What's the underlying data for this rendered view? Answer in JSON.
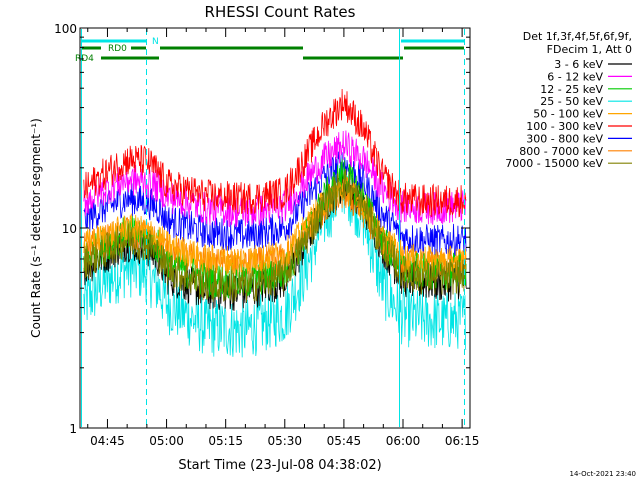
{
  "chart_data": {
    "type": "line",
    "title": "RHESSI Count Rates",
    "xlabel": "Start Time (23-Jul-08 04:38:02)",
    "ylabel": "Count Rate (s⁻¹ detector segment⁻¹)",
    "yscale": "log",
    "ylim": [
      1,
      100
    ],
    "xlim": [
      "04:38:02",
      "06:17:00"
    ],
    "x_ticks": [
      "04:45",
      "05:00",
      "05:15",
      "05:30",
      "05:45",
      "06:00",
      "06:15"
    ],
    "y_ticks": [
      "1",
      "10",
      "100"
    ],
    "grid": false,
    "legend_position": "right",
    "legend_header": [
      "Det 1f,3f,4f,5f,6f,9f,",
      "FDecim 1, Att 0"
    ],
    "x": [
      "04:39",
      "04:44",
      "04:50",
      "04:55",
      "04:58",
      "05:00",
      "05:10",
      "05:20",
      "05:30",
      "05:35",
      "05:40",
      "05:45",
      "05:50",
      "05:55",
      "05:59",
      "06:00",
      "06:05",
      "06:10",
      "06:15"
    ],
    "series": [
      {
        "name": "3 - 6 keV",
        "color": "#000000",
        "values": [
          6.3,
          7.3,
          8.5,
          8.0,
          7.0,
          5.8,
          4.8,
          4.8,
          5.5,
          8.2,
          13.0,
          17.0,
          13.0,
          8.0,
          6.0,
          5.6,
          5.4,
          5.3,
          5.5
        ]
      },
      {
        "name": "6 - 12 keV",
        "color": "#ff00ff",
        "values": [
          13.5,
          15.5,
          17.5,
          17.0,
          16.0,
          14.5,
          12.5,
          12.0,
          12.8,
          17.0,
          22.0,
          26.0,
          22.0,
          15.5,
          13.0,
          12.8,
          12.5,
          12.6,
          12.8
        ]
      },
      {
        "name": "12 - 25 keV",
        "color": "#00cc00",
        "values": [
          7.0,
          8.2,
          9.5,
          9.0,
          8.0,
          6.8,
          5.5,
          5.4,
          6.0,
          9.0,
          14.0,
          19.0,
          14.0,
          8.5,
          6.8,
          6.3,
          6.1,
          6.0,
          6.2
        ]
      },
      {
        "name": "25 - 50 keV",
        "color": "#00e5e5",
        "values": [
          4.2,
          5.3,
          6.4,
          6.0,
          5.0,
          4.2,
          3.2,
          3.1,
          3.7,
          6.0,
          11.0,
          16.5,
          11.0,
          5.0,
          3.9,
          3.6,
          3.5,
          3.4,
          3.5
        ]
      },
      {
        "name": "50 - 100 keV",
        "color": "#ffa500",
        "values": [
          8.2,
          9.0,
          10.0,
          9.6,
          9.0,
          8.2,
          7.0,
          6.9,
          7.4,
          9.8,
          13.5,
          16.0,
          13.0,
          8.8,
          7.6,
          7.1,
          6.9,
          6.8,
          6.9
        ]
      },
      {
        "name": "100 - 300 keV",
        "color": "#ff0000",
        "values": [
          15.5,
          18.5,
          22.0,
          21.5,
          19.0,
          16.5,
          14.5,
          14.0,
          15.0,
          22.0,
          33.0,
          43.0,
          31.0,
          18.0,
          14.5,
          14.0,
          13.7,
          13.6,
          13.8
        ]
      },
      {
        "name": "300 - 800 keV",
        "color": "#0000ff",
        "values": [
          11.0,
          12.5,
          14.0,
          13.5,
          12.5,
          11.0,
          9.5,
          9.2,
          10.0,
          13.5,
          18.0,
          21.0,
          17.0,
          11.5,
          9.5,
          9.0,
          8.7,
          8.6,
          8.7
        ]
      },
      {
        "name": "800 - 7000 keV",
        "color": "#ff8000",
        "values": [
          7.8,
          8.6,
          9.5,
          9.1,
          8.5,
          7.8,
          6.6,
          6.5,
          7.0,
          9.3,
          12.5,
          15.0,
          12.0,
          8.2,
          7.0,
          6.6,
          6.4,
          6.3,
          6.4
        ]
      },
      {
        "name": "7000 - 15000 keV",
        "color": "#808000",
        "values": [
          6.7,
          7.6,
          8.8,
          8.3,
          7.4,
          6.3,
          5.2,
          5.1,
          5.8,
          8.5,
          13.0,
          17.0,
          12.8,
          8.2,
          6.3,
          5.9,
          5.7,
          5.6,
          5.8
        ]
      }
    ],
    "annotations": {
      "attenuator_labels": [
        "RD0",
        "RD4"
      ],
      "bar_label": "N",
      "timestamp": "14-Oct-2021 23:40"
    }
  }
}
